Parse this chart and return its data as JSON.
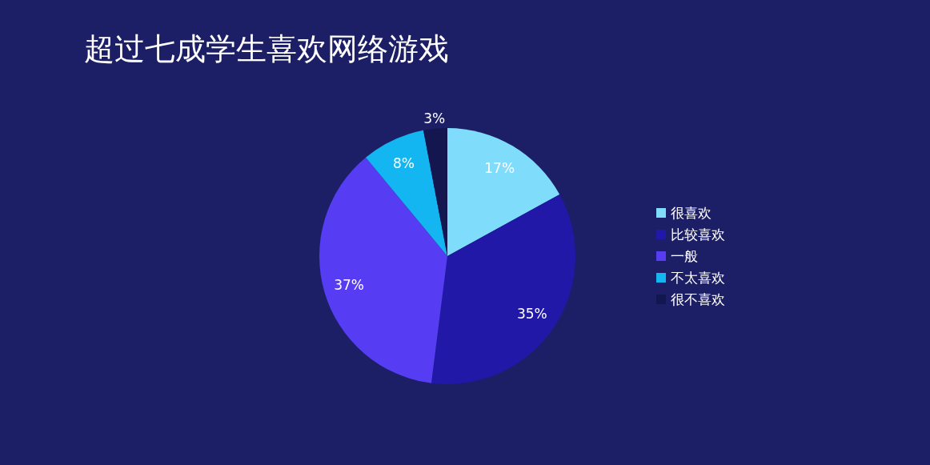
{
  "chart_data": {
    "type": "pie",
    "title": "超过七成学生喜欢网络游戏",
    "categories": [
      "很喜欢",
      "比较喜欢",
      "一般",
      "不太喜欢",
      "很不喜欢"
    ],
    "values": [
      17,
      35,
      37,
      8,
      3
    ],
    "colors": [
      "#7fdcfb",
      "#2218a8",
      "#563cf2",
      "#14b6f2",
      "#14164f"
    ],
    "value_labels": [
      "17%",
      "35%",
      "37%",
      "8%",
      "3%"
    ],
    "legend": "right"
  }
}
